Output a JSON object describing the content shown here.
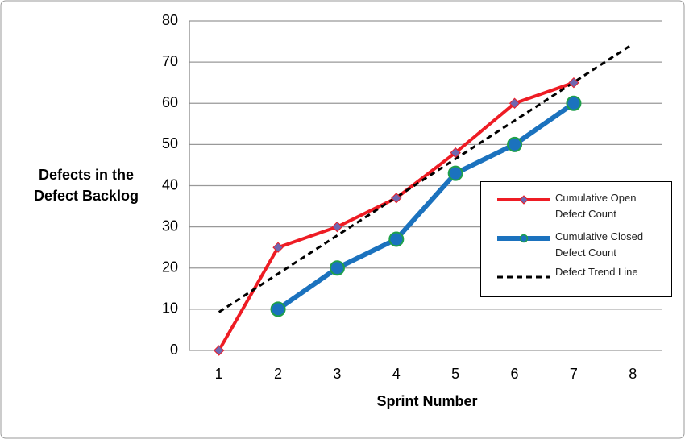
{
  "chart_data": {
    "type": "line",
    "y_label": "Defects in the Defect Backlog",
    "x_label": "Sprint Number",
    "categories": [
      "1",
      "2",
      "3",
      "4",
      "5",
      "6",
      "7",
      "8"
    ],
    "series": [
      {
        "name": "Cumulative Open Defect Count",
        "color": "#ee1c24",
        "marker": "diamond",
        "marker_color": "#6f67b0",
        "values": [
          0,
          25,
          30,
          37,
          48,
          60,
          65,
          null
        ]
      },
      {
        "name": "Cumulative Closed Defect Count",
        "color": "#1b72be",
        "marker": "circle",
        "marker_color": "#1b72be",
        "values": [
          null,
          10,
          20,
          27,
          43,
          50,
          60,
          null
        ]
      },
      {
        "name": "Defect Trend Line",
        "color": "#000000",
        "dashed": true,
        "values": [
          9.3,
          18.6,
          27.9,
          37.2,
          46.5,
          55.8,
          65.1,
          74.4
        ]
      }
    ],
    "ylim": [
      0,
      80
    ],
    "yticks": [
      0,
      10,
      20,
      30,
      40,
      50,
      60,
      70,
      80
    ],
    "grid": true
  }
}
